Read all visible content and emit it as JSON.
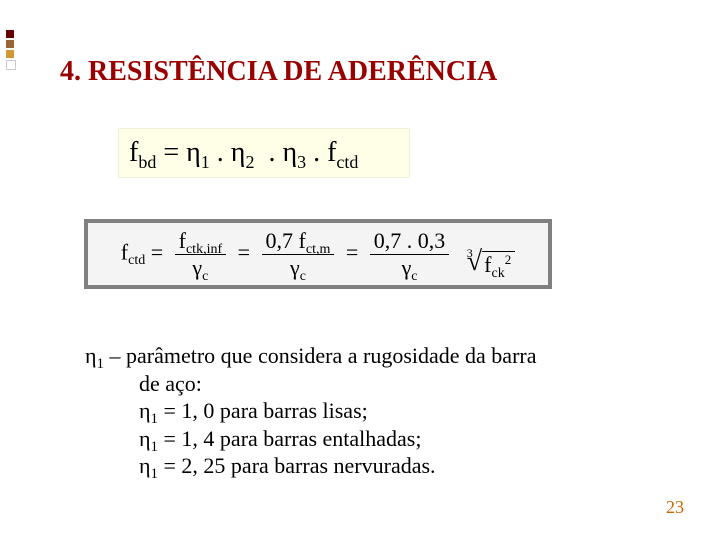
{
  "decor": {
    "colors": [
      "#660000",
      "#996633",
      "#cc9933",
      "#ffffff"
    ]
  },
  "heading": {
    "text": "4. RESISTÊNCIA DE ADERÊNCIA",
    "color": "#990000",
    "fontsize": 28,
    "weight": "bold"
  },
  "formula1": {
    "background": "#ffffe8",
    "color": "#000000",
    "fontsize": 28,
    "parts": {
      "f": "f",
      "bd": "bd",
      "eq": " = ",
      "eta": "η",
      "s1": "1",
      "dot": " . ",
      "s2": "2",
      "s3": "3",
      "ctd": "ctd"
    }
  },
  "fctd": {
    "border_color": "#808080",
    "background": "#f4f4f4",
    "fontsize": 22,
    "expr": {
      "lhs_f": "f",
      "lhs_sub": "ctd",
      "eq": " = ",
      "num1_f": "f",
      "num1_sub": "ctk,inf",
      "den_gamma": "γ",
      "den_sub": "c",
      "num2": "0,7 f",
      "num2_sub": "ct,m",
      "num3": "0,7 . 0,3",
      "rad_deg": "3",
      "radicand_f": "f",
      "radicand_sub": "ck",
      "radicand_sup": "2"
    }
  },
  "param": {
    "color": "#000000",
    "fontsize": 22,
    "eta": "η",
    "sub1": "1",
    "line1_a": " – parâmetro que considera a rugosidade da barra",
    "line1_b": "de aço:",
    "line2": " = 1, 0 para barras lisas;",
    "line3": " = 1, 4 para barras entalhadas;",
    "line4": " = 2, 25 para barras nervuradas."
  },
  "page_number": {
    "value": "23",
    "color": "#cc6600",
    "fontsize": 18
  }
}
